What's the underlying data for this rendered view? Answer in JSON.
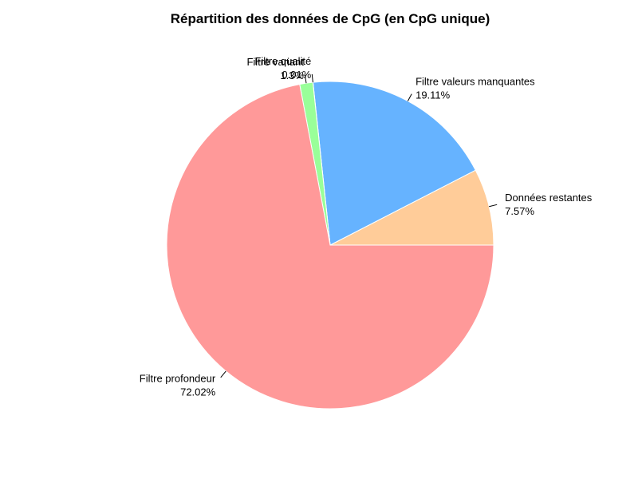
{
  "chart_data": {
    "type": "pie",
    "title": "Répartition des données de CpG (en CpG unique)",
    "slices": [
      {
        "label": "Données restantes",
        "percent_label": "7.57%",
        "value": 7.57,
        "color": "#FFCC99"
      },
      {
        "label": "Filtre valeurs manquantes",
        "percent_label": "19.11%",
        "value": 19.11,
        "color": "#66B3FF"
      },
      {
        "label": "Filtre qualité",
        "percent_label": "0.01%",
        "value": 0.01,
        "color": "#FF9999"
      },
      {
        "label": "Filtre variant",
        "percent_label": "1.3%",
        "value": 1.3,
        "color": "#99FF99"
      },
      {
        "label": "Filtre profondeur",
        "percent_label": "72.02%",
        "value": 72.02,
        "color": "#FF9999"
      }
    ],
    "start_angle_deg": 0,
    "direction": "counterclockwise-on-screen-reversed",
    "legend": "none"
  }
}
